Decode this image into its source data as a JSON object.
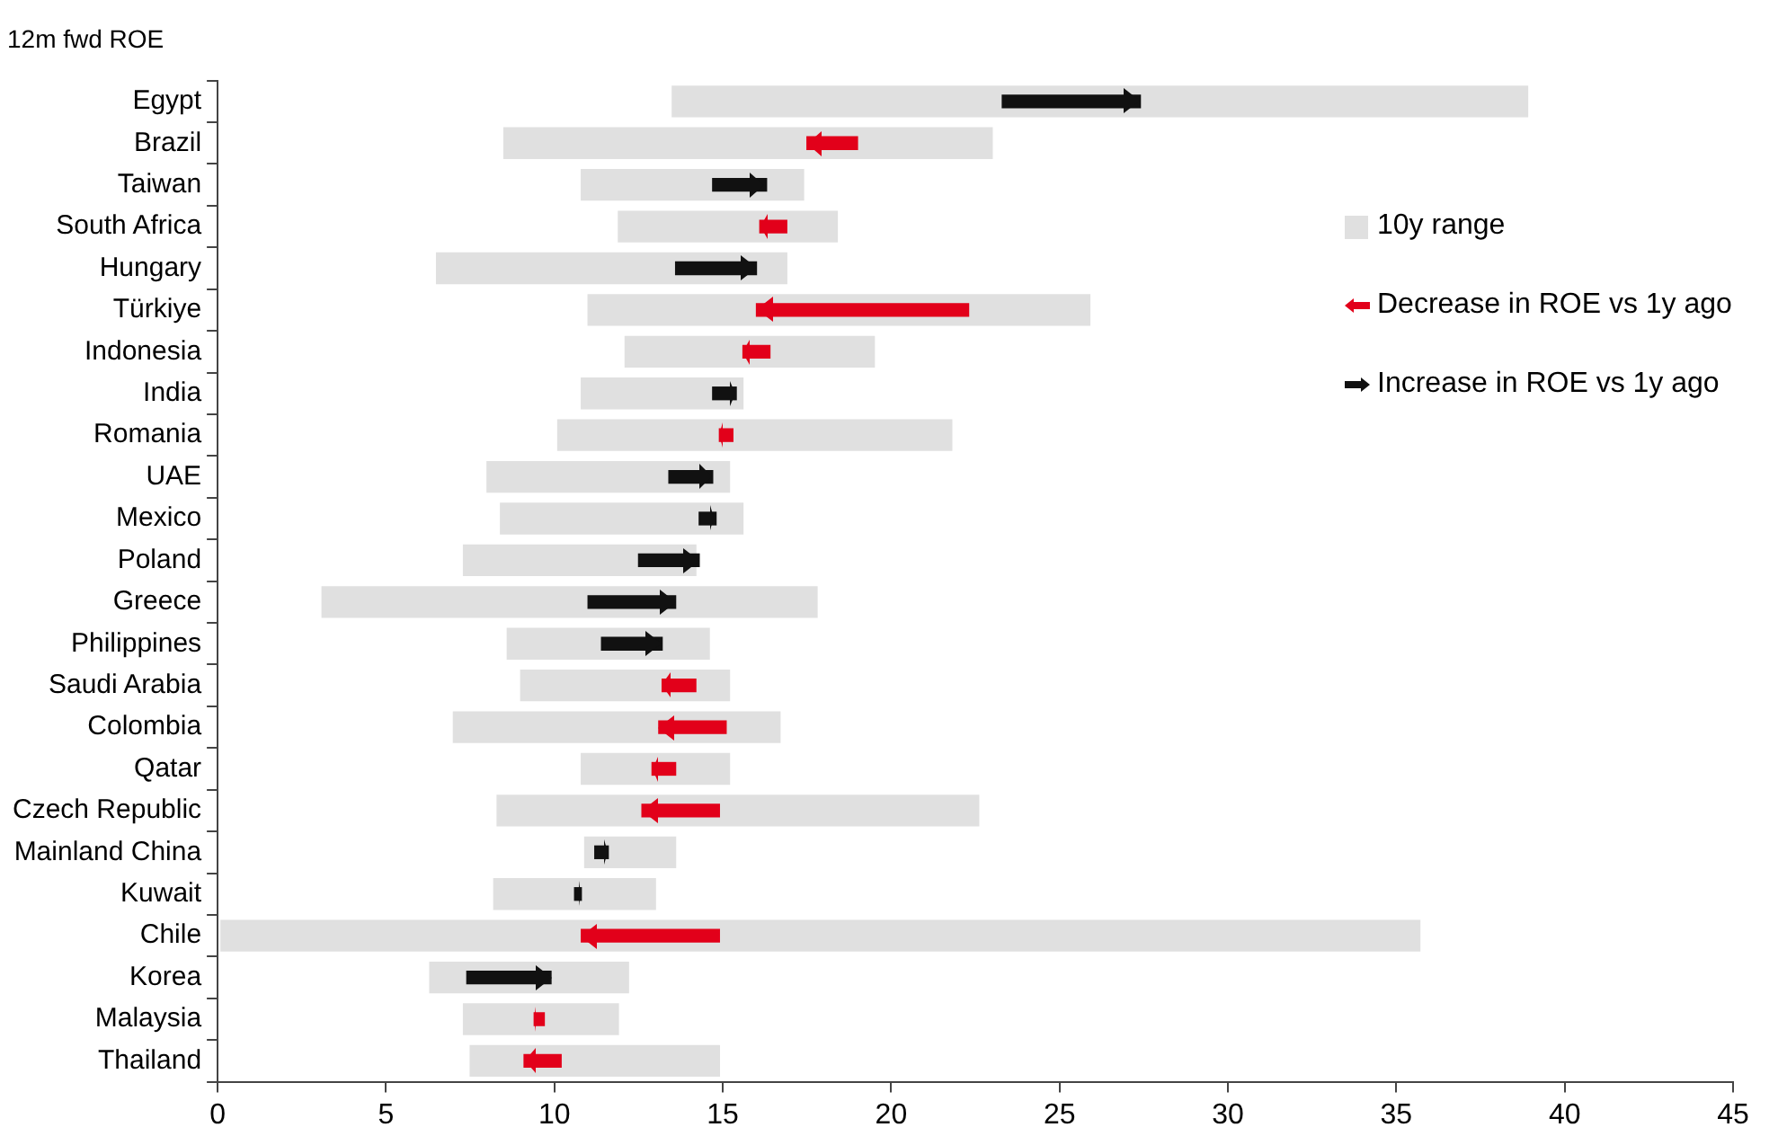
{
  "chart_data": {
    "type": "bar",
    "orientation": "horizontal",
    "title": "12m fwd ROE",
    "categories": [
      "Egypt",
      "Brazil",
      "Taiwan",
      "South Africa",
      "Hungary",
      "Türkiye",
      "Indonesia",
      "India",
      "Romania",
      "UAE",
      "Mexico",
      "Poland",
      "Greece",
      "Philippines",
      "Saudi Arabia",
      "Colombia",
      "Qatar",
      "Czech Republic",
      "Mainland China",
      "Kuwait",
      "Chile",
      "Korea",
      "Malaysia",
      "Thailand"
    ],
    "series": [
      {
        "name": "10y range",
        "color": "#e0e0e0",
        "base": [
          13.5,
          8.5,
          10.8,
          11.9,
          6.5,
          11.0,
          12.1,
          10.8,
          10.1,
          8.0,
          8.4,
          7.3,
          3.1,
          8.6,
          9.0,
          7.0,
          10.8,
          8.3,
          10.9,
          8.2,
          0.1,
          6.3,
          7.3,
          7.5
        ],
        "values": [
          25.4,
          14.5,
          6.6,
          6.5,
          10.4,
          14.9,
          7.4,
          4.8,
          11.7,
          7.2,
          7.2,
          6.9,
          14.7,
          6.0,
          6.2,
          9.7,
          4.4,
          14.3,
          2.7,
          4.8,
          35.6,
          5.9,
          4.6,
          7.4
        ]
      },
      {
        "name": "Decrease in ROE vs 1y ago",
        "color": "#e2001a",
        "marker": "triangle",
        "base": [
          null,
          19.0,
          null,
          16.9,
          null,
          22.3,
          16.4,
          null,
          15.3,
          null,
          null,
          null,
          null,
          null,
          14.2,
          15.1,
          13.6,
          14.9,
          null,
          null,
          14.9,
          null,
          9.7,
          10.2
        ],
        "values": [
          null,
          -1.5,
          null,
          -0.8,
          null,
          -6.3,
          -0.8,
          null,
          -0.4,
          null,
          null,
          null,
          null,
          null,
          -1.0,
          -2.0,
          -0.7,
          -2.3,
          null,
          null,
          -4.1,
          null,
          -0.3,
          -1.1
        ]
      },
      {
        "name": "Increase in ROE vs 1y ago",
        "color": "#111111",
        "marker": "triangle",
        "base": [
          23.3,
          null,
          14.7,
          null,
          13.6,
          null,
          null,
          14.7,
          null,
          13.4,
          14.3,
          12.5,
          11.0,
          11.4,
          null,
          null,
          null,
          null,
          11.2,
          10.6,
          null,
          7.4,
          null,
          null
        ],
        "values": [
          4.1,
          null,
          1.6,
          null,
          2.4,
          null,
          null,
          0.7,
          null,
          1.3,
          0.5,
          1.8,
          2.6,
          1.8,
          null,
          null,
          null,
          null,
          0.4,
          0.2,
          null,
          2.5,
          null,
          null
        ]
      }
    ],
    "xlim": [
      0,
      45
    ],
    "xticks": [
      0,
      5,
      10,
      15,
      20,
      25,
      30,
      35,
      40,
      45
    ],
    "legend": "right",
    "grid": false
  }
}
